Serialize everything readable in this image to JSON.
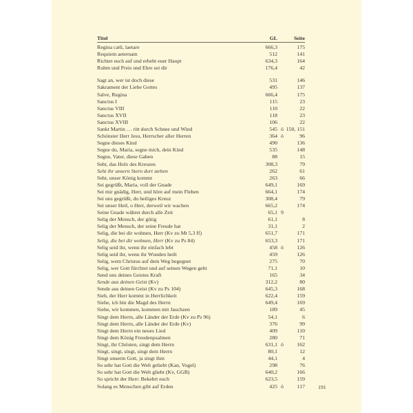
{
  "header": {
    "title": "Titel",
    "gl": "GL",
    "page": "Seite"
  },
  "group1": [
    {
      "title": "Regina cæli, laetare",
      "gl": "666,3",
      "mark": "",
      "page": "175"
    },
    {
      "title": "Requiem aeternam",
      "gl": "512",
      "mark": "",
      "page": "141"
    },
    {
      "title": "Richtet euch auf und erhebt euer Haupt",
      "gl": "634,3",
      "mark": "",
      "page": "164"
    },
    {
      "title": "Ruhm und Preis und Ehre sei dir",
      "gl": "176,4",
      "mark": "",
      "page": "42"
    }
  ],
  "group2": [
    {
      "title": "Sagt an, wer ist doch diese",
      "gl": "531",
      "mark": "",
      "page": "146"
    },
    {
      "title": "Sakrament der Liebe Gottes",
      "gl": "495",
      "mark": "",
      "page": "137"
    },
    {
      "title": "Salve, Regina",
      "gl": "666,4",
      "mark": "",
      "page": "175"
    },
    {
      "title": "Sanctus I",
      "gl": "115",
      "mark": "",
      "page": "23"
    },
    {
      "title": "Sanctus VIII",
      "gl": "110",
      "mark": "",
      "page": "22"
    },
    {
      "title": "Sanctus XVII",
      "gl": "118",
      "mark": "",
      "page": "23"
    },
    {
      "title": "Sanctus XVIII",
      "gl": "106",
      "mark": "",
      "page": "22"
    },
    {
      "title": "Sankt Martin … ritt durch Schnee und Wind",
      "gl": "545",
      "mark": "ö",
      "page": "150, 151"
    },
    {
      "title": "Schönster Herr Jesu, Herrscher aller Herren",
      "gl": "364",
      "mark": "ö",
      "page": "96"
    },
    {
      "title": "Segne dieses Kind",
      "gl": "490",
      "mark": "",
      "page": "136"
    },
    {
      "title": "Segne du, Maria, segne mich, dein Kind",
      "gl": "535",
      "mark": "",
      "page": "148"
    },
    {
      "title": "Segne, Vater, diese Gaben",
      "gl": "88",
      "mark": "",
      "page": "15"
    },
    {
      "title": "Seht, das Holz des Kreuzes",
      "gl": "308,3",
      "mark": "",
      "page": "79"
    },
    {
      "italic": "Seht ihr unsern Stern dort stehen",
      "title": "",
      "gl": "262",
      "mark": "",
      "page": "61"
    },
    {
      "title": "Seht, unser König kommt",
      "gl": "263",
      "mark": "",
      "page": "66"
    },
    {
      "title": "Sei gegrüßt, Maria, voll der Gnade",
      "gl": "649,1",
      "mark": "",
      "page": "169"
    },
    {
      "title": "Sei mir gnädig, Herr, und höre auf mein Flehen",
      "gl": "664,1",
      "mark": "",
      "page": "174"
    },
    {
      "title": "Sei uns gegrüßt, du heiliges Kreuz",
      "gl": "308,4",
      "mark": "",
      "page": "79"
    },
    {
      "title": "Sei unser Heil, o Herr, derweil wir wachen",
      "gl": "665,2",
      "mark": "",
      "page": "174"
    },
    {
      "title": "Seine Gnade währet durch alle Zeit",
      "gl": "65,1",
      "mark": "9",
      "page": ""
    },
    {
      "title": "Selig der Mensch, der gütig",
      "gl": "61,1",
      "mark": "",
      "page": "8"
    },
    {
      "title": "Selig der Mensch, der seine Freude hat",
      "gl": "31,1",
      "mark": "",
      "page": "2"
    },
    {
      "title": "Selig, die bei dir wohnen, Herr (Kv zu Mt 5,3 ff)",
      "gl": "651,7",
      "mark": "",
      "page": "171"
    },
    {
      "italic": "Selig, die bei dir wohnen, Herr",
      "title": " (Kv zu Ps 84)",
      "gl": "653,3",
      "mark": "",
      "page": "171"
    },
    {
      "title": "Selig seid ihr, wenn ihr einfach lebt",
      "gl": "458",
      "mark": "ö",
      "page": "126"
    },
    {
      "title": "Selig seid ihr, wenn ihr Wunden heilt",
      "gl": "459",
      "mark": "",
      "page": "126"
    },
    {
      "title": "Selig, wem Christus auf dem Weg begegnet",
      "gl": "275",
      "mark": "",
      "page": "70"
    },
    {
      "title": "Selig, wer Gott fürchtet und auf seinen Wegen geht",
      "gl": "71,1",
      "mark": "",
      "page": "10"
    },
    {
      "title": "Send uns deines Geistes Kraft",
      "gl": "165",
      "mark": "",
      "page": "34"
    },
    {
      "italic": "Sende aus deinen Geist",
      "title": " (Kv)",
      "gl": "312,2",
      "mark": "",
      "page": "80"
    },
    {
      "title": "Sende aus deinen Geist (Kv zu Ps 104)",
      "gl": "645,3",
      "mark": "",
      "page": "168"
    },
    {
      "title": "Sieh, der Herr kommt in Herrlichkeit",
      "gl": "622,4",
      "mark": "",
      "page": "159"
    },
    {
      "title": "Siehe, ich bin die Magd des Herrn",
      "gl": "649,4",
      "mark": "",
      "page": "169"
    },
    {
      "title": "Siehe, wir kommen, kommen mit Jauchzen",
      "gl": "189",
      "mark": "",
      "page": "45"
    },
    {
      "title": "Singt dem Herrn, alle Länder der Erde (Kv zu Ps 96)",
      "gl": "54,1",
      "mark": "",
      "page": "6"
    },
    {
      "title": "Singt dem Herrn, alle Länder der Erde (Kv)",
      "gl": "376",
      "mark": "",
      "page": "99"
    },
    {
      "title": "Singt dem Herrn ein neues Lied",
      "gl": "409",
      "mark": "",
      "page": "110"
    },
    {
      "title": "Singt dem König Freudenpsalmen",
      "gl": "280",
      "mark": "",
      "page": "71"
    },
    {
      "title": "Singt, ihr Christen, singt dem Herrn",
      "gl": "631,1",
      "mark": "ö",
      "page": "162"
    },
    {
      "title": "Singt, singt, singt, singt dem Herrn",
      "gl": "80,1",
      "mark": "",
      "page": "12"
    },
    {
      "title": "Singt unserm Gott, ja singt ihm",
      "gl": "44,1",
      "mark": "",
      "page": "4"
    },
    {
      "title": "So sehr hat Gott die Welt geliebt (Kan, Vogel)",
      "gl": "298",
      "mark": "",
      "page": "76"
    },
    {
      "title": "So sehr hat Gott die Welt gliebt (Kv, GGB)",
      "gl": "640,2",
      "mark": "",
      "page": "166"
    },
    {
      "title": "So spricht der Herr: Bekehrt euch",
      "gl": "623,5",
      "mark": "",
      "page": "159"
    },
    {
      "title": "Solang es Menschen gibt auf Erden",
      "gl": "425",
      "mark": "ö",
      "page": "117"
    }
  ],
  "page_number": "191"
}
